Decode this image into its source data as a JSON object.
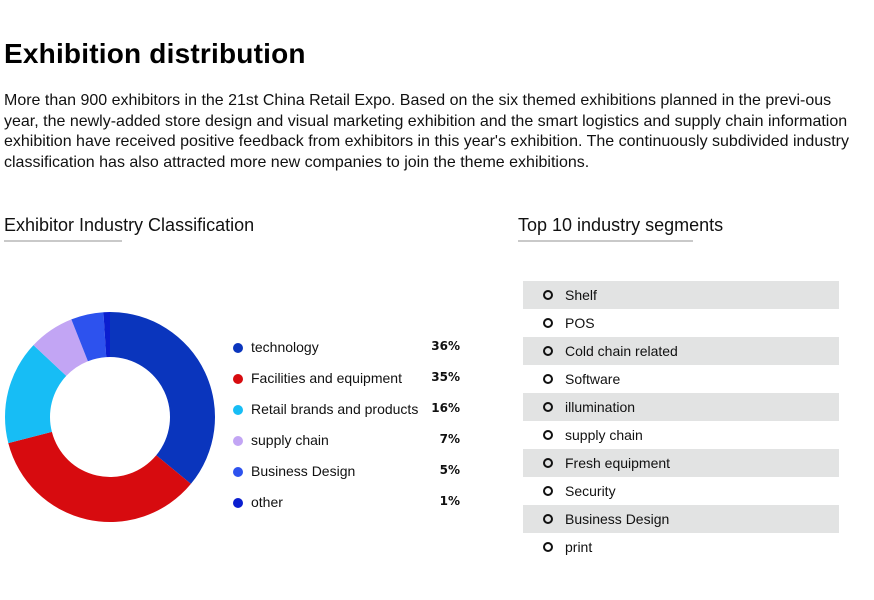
{
  "page": {
    "title": "Exhibition distribution",
    "intro": "More than 900 exhibitors in the 21st China Retail Expo. Based on the six themed exhibitions planned in the previ-ous year, the newly-added store design and visual marketing exhibition and the smart logistics and supply chain information exhibition have received positive feedback from exhibitors in this year's exhibition. The continuously subdivided industry classification has also attracted more new companies to join the theme exhibitions."
  },
  "classification": {
    "heading": "Exhibitor Industry Classification"
  },
  "segments": {
    "heading": "Top 10 industry segments",
    "items": [
      "Shelf",
      "POS",
      "Cold chain related",
      "Software",
      "illumination",
      "supply chain",
      "Fresh equipment",
      "Security",
      "Business Design",
      "print"
    ]
  },
  "chart_data": {
    "type": "pie",
    "title": "Exhibitor Industry Classification",
    "donut": true,
    "legend_position": "right",
    "slices": [
      {
        "label": "technology",
        "value": 36,
        "display": "36%",
        "color": "#0a35bd"
      },
      {
        "label": "Facilities and equipment",
        "value": 35,
        "display": "35%",
        "color": "#d70b0f"
      },
      {
        "label": "Retail brands and products",
        "value": 16,
        "display": "16%",
        "color": "#17bdf5"
      },
      {
        "label": "supply chain",
        "value": 7,
        "display": "7%",
        "color": "#c2a5f4"
      },
      {
        "label": "Business Design",
        "value": 5,
        "display": "5%",
        "color": "#2d52ee"
      },
      {
        "label": "other",
        "value": 1,
        "display": "1%",
        "color": "#0a1ed0"
      }
    ]
  }
}
